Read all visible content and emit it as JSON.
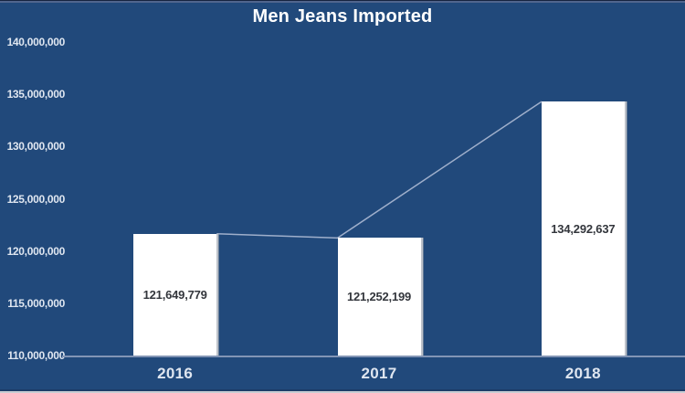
{
  "colors": {
    "background": "#21497B",
    "title_text": "#FFFFFF",
    "axis_text": "#DFE6F0",
    "bar_fill": "#FFFFFF",
    "bar_label": "#33363C",
    "trend_line": "#9FAFCB",
    "axis_line": "#8295B5"
  },
  "chart_data": {
    "type": "bar",
    "title": "Men Jeans Imported",
    "categories": [
      "2016",
      "2017",
      "2018"
    ],
    "values": [
      121649779,
      121252199,
      134292637
    ],
    "data_labels": [
      "121,649,779",
      "121,252,199",
      "134,292,637"
    ],
    "y_ticks": [
      "140,000,000",
      "135,000,000",
      "130,000,000",
      "125,000,000",
      "120,000,000",
      "115,000,000",
      "110,000,000"
    ],
    "ylim": [
      110000000,
      140000000
    ],
    "y_tick_step": 5000000,
    "xlabel": "",
    "ylabel": "",
    "grid": false,
    "legend": false,
    "overlay_line_connecting_bar_tops": true,
    "bar_label_position": "center-inside",
    "bar_color": "#FFFFFF",
    "background_color": "#21497B"
  }
}
